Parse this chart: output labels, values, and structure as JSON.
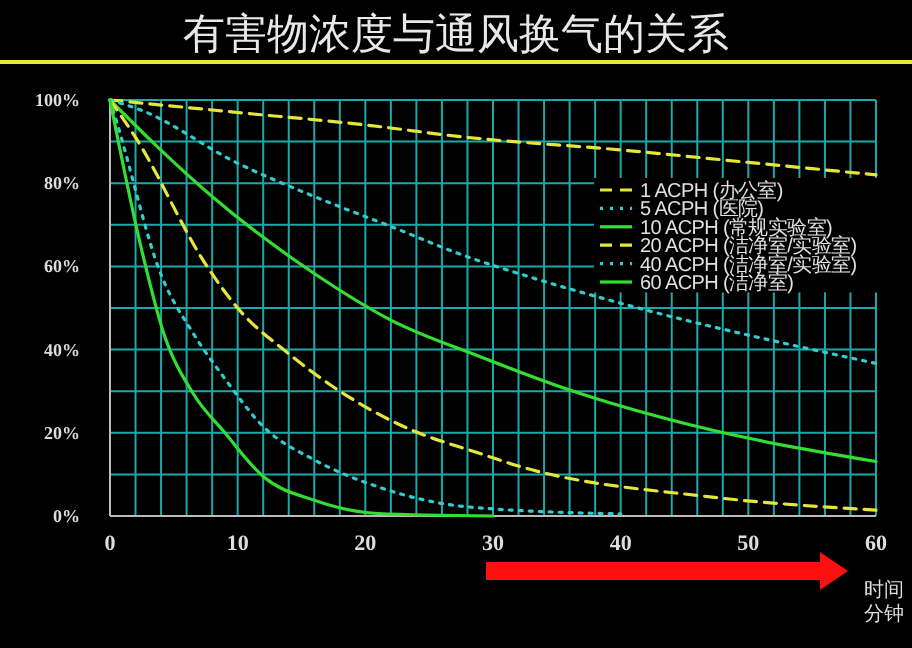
{
  "chart_data": {
    "type": "line",
    "title": "有害物浓度与通风换气的关系",
    "xlabel": "时间分钟",
    "xlim": [
      0,
      60
    ],
    "ylim": [
      0,
      100
    ],
    "xticks": [
      0,
      {
        "value": 2,
        "label": null
      },
      {
        "value": 4,
        "label": null
      },
      {
        "value": 6,
        "label": null
      },
      {
        "value": 8,
        "label": null
      },
      10,
      {
        "value": 12,
        "label": null
      },
      {
        "value": 14,
        "label": null
      },
      {
        "value": 16,
        "label": null
      },
      {
        "value": 18,
        "label": null
      },
      20,
      {
        "value": 22,
        "label": null
      },
      {
        "value": 24,
        "label": null
      },
      {
        "value": 26,
        "label": null
      },
      {
        "value": 28,
        "label": null
      },
      30,
      {
        "value": 32,
        "label": null
      },
      {
        "value": 34,
        "label": null
      },
      {
        "value": 36,
        "label": null
      },
      {
        "value": 38,
        "label": null
      },
      40,
      {
        "value": 42,
        "label": null
      },
      {
        "value": 44,
        "label": null
      },
      {
        "value": 46,
        "label": null
      },
      {
        "value": 48,
        "label": null
      },
      50,
      {
        "value": 52,
        "label": null
      },
      {
        "value": 54,
        "label": null
      },
      {
        "value": 56,
        "label": null
      },
      {
        "value": 58,
        "label": null
      },
      60
    ],
    "yticks": [
      {
        "value": 0,
        "label": "0%"
      },
      {
        "value": 10,
        "label": null
      },
      {
        "value": 20,
        "label": "20%"
      },
      {
        "value": 30,
        "label": null
      },
      {
        "value": 40,
        "label": "40%"
      },
      {
        "value": 50,
        "label": null
      },
      {
        "value": 60,
        "label": "60%"
      },
      {
        "value": 70,
        "label": null
      },
      {
        "value": 80,
        "label": "80%"
      },
      {
        "value": 90,
        "label": null
      },
      {
        "value": 100,
        "label": "100%"
      }
    ],
    "grid": true,
    "legend": "right",
    "series": [
      {
        "name": "1 ACPH (办公室)",
        "color": "#e6e63a",
        "line_style": "dashed",
        "x": [
          0,
          10,
          20,
          28,
          40,
          50,
          60
        ],
        "values": [
          100,
          97,
          94,
          91,
          88,
          85,
          82
        ]
      },
      {
        "name": "5 ACPH (医院)",
        "color": "#33cccc",
        "line_style": "dotted",
        "x": [
          0,
          2.4,
          10,
          16,
          22,
          28,
          32,
          42,
          54,
          60
        ],
        "values": [
          100,
          97.6,
          84.8,
          76.8,
          69.6,
          62.3,
          58.3,
          49.5,
          40.7,
          36.7
        ]
      },
      {
        "name": "10 ACPH (常规实验室)",
        "color": "#33dd33",
        "line_style": "solid",
        "x": [
          0,
          3.7,
          8,
          16,
          22,
          29,
          36,
          46,
          60
        ],
        "values": [
          100,
          88.8,
          76.8,
          58.3,
          47.1,
          38.3,
          30.3,
          21.5,
          13.1
        ]
      },
      {
        "name": "20 ACPH (洁净室/实验室)",
        "color": "#e6e63a",
        "line_style": "dashed",
        "x": [
          0,
          2,
          7.6,
          10,
          14,
          18,
          23,
          29,
          32,
          47,
          60
        ],
        "values": [
          100,
          91,
          60,
          50,
          39,
          30,
          21.5,
          15,
          12,
          4.6,
          1.4
        ]
      },
      {
        "name": "40 ACPH (洁净室/实验室)",
        "color": "#33cccc",
        "line_style": "dotted",
        "x": [
          0,
          0.5,
          4,
          6.5,
          9,
          12,
          16,
          21,
          28,
          40
        ],
        "values": [
          100,
          95,
          58,
          44,
          33,
          21.5,
          13.5,
          7,
          2.2,
          0.5
        ]
      },
      {
        "name": "60 ACPH (洁净室)",
        "color": "#33dd33",
        "line_style": "solid",
        "x": [
          0,
          2.4,
          4.2,
          6.5,
          9,
          12,
          16,
          21,
          30
        ],
        "values": [
          100,
          65,
          44,
          29.5,
          20,
          9.5,
          3.8,
          0.6,
          0
        ]
      }
    ]
  }
}
